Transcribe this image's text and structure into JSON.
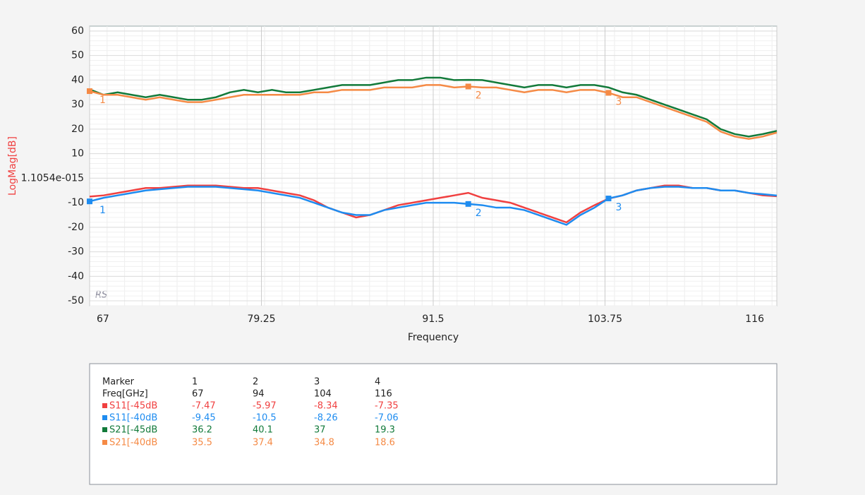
{
  "chart_data": {
    "type": "line",
    "ylabel": "LogMag[dB]",
    "xlabel": "Frequency",
    "logo": "RS",
    "x": [
      67,
      68,
      69,
      70,
      71,
      72,
      73,
      74,
      75,
      76,
      77,
      78,
      79,
      80,
      81,
      82,
      83,
      84,
      85,
      86,
      87,
      88,
      89,
      90,
      91,
      92,
      93,
      94,
      95,
      96,
      97,
      98,
      99,
      100,
      101,
      102,
      103,
      104,
      105,
      106,
      107,
      108,
      109,
      110,
      111,
      112,
      113,
      114,
      115,
      116
    ],
    "xlim": [
      67,
      116
    ],
    "xticks": [
      67,
      79.25,
      91.5,
      103.75,
      116
    ],
    "ylim": [
      -52,
      62
    ],
    "yticks": [
      -50,
      -40,
      -30,
      -20,
      -10,
      {
        "value": 0,
        "label": "1.1054e-015"
      },
      10,
      20,
      30,
      40,
      50,
      60
    ],
    "grid": true,
    "marker_header": "Marker",
    "marker_numbers": [
      "1",
      "2",
      "3",
      "4"
    ],
    "freq_header": "Freq[GHz]",
    "marker_freqs": [
      67,
      94,
      104,
      116
    ],
    "series": [
      {
        "name": "S11[-45dB",
        "color": "#f04040",
        "show_markers": false,
        "values": [
          -7.47,
          -7,
          -6,
          -5,
          -4,
          -4,
          -3.5,
          -3,
          -3,
          -3,
          -3.5,
          -4,
          -4,
          -5,
          -6,
          -7,
          -9,
          -12,
          -14,
          -16,
          -15,
          -13,
          -11,
          -10,
          -9,
          -8,
          -7,
          -5.97,
          -8,
          -9,
          -10,
          -12,
          -14,
          -16,
          -18,
          -14,
          -11,
          -8.34,
          -7,
          -5,
          -4,
          -3,
          -3,
          -4,
          -4,
          -5,
          -5,
          -6,
          -7,
          -7.35
        ],
        "marker_values": [
          -7.47,
          -5.97,
          -8.34,
          -7.35
        ]
      },
      {
        "name": "S11[-40dB",
        "color": "#1e8cf0",
        "show_markers": true,
        "values": [
          -9.45,
          -8,
          -7,
          -6,
          -5,
          -4.5,
          -4,
          -3.5,
          -3.5,
          -3.5,
          -4,
          -4.5,
          -5,
          -6,
          -7,
          -8,
          -10,
          -12,
          -14,
          -15,
          -15,
          -13,
          -12,
          -11,
          -10,
          -10,
          -10,
          -10.5,
          -11,
          -12,
          -12,
          -13,
          -15,
          -17,
          -19,
          -15,
          -12,
          -8.26,
          -7,
          -5,
          -4,
          -3.5,
          -3.5,
          -4,
          -4,
          -5,
          -5,
          -6,
          -6.5,
          -7.06
        ],
        "marker_values": [
          -9.45,
          -10.5,
          -8.26,
          -7.06
        ]
      },
      {
        "name": "S21[-45dB",
        "color": "#127a3a",
        "show_markers": false,
        "values": [
          36.2,
          34,
          35,
          34,
          33,
          34,
          33,
          32,
          32,
          33,
          35,
          36,
          35,
          36,
          35,
          35,
          36,
          37,
          38,
          38,
          38,
          39,
          40,
          40,
          41,
          41,
          40,
          40.1,
          40,
          39,
          38,
          37,
          38,
          38,
          37,
          38,
          38,
          37,
          35,
          34,
          32,
          30,
          28,
          26,
          24,
          20,
          18,
          17,
          18,
          19.3
        ],
        "marker_values": [
          36.2,
          40.1,
          37,
          19.3
        ]
      },
      {
        "name": "S21[-40dB",
        "color": "#f58a45",
        "show_markers": true,
        "values": [
          35.5,
          34,
          34,
          33,
          32,
          33,
          32,
          31,
          31,
          32,
          33,
          34,
          34,
          34,
          34,
          34,
          35,
          35,
          36,
          36,
          36,
          37,
          37,
          37,
          38,
          38,
          37,
          37.4,
          37,
          37,
          36,
          35,
          36,
          36,
          35,
          36,
          36,
          34.8,
          33,
          33,
          31,
          29,
          27,
          25,
          23,
          19,
          17,
          16,
          17,
          18.6
        ],
        "marker_values": [
          35.5,
          37.4,
          34.8,
          18.6
        ]
      }
    ]
  }
}
